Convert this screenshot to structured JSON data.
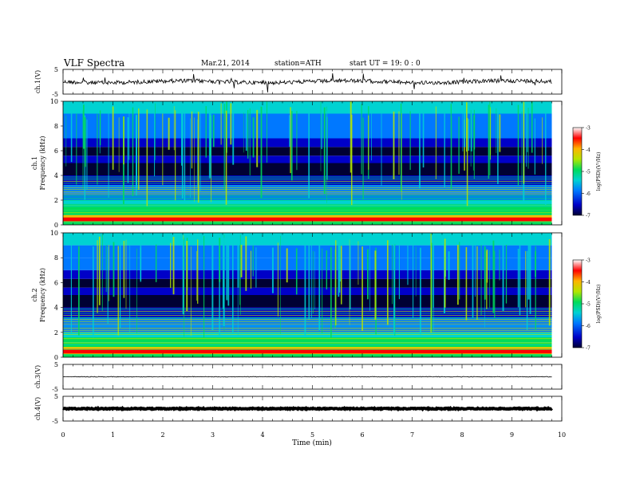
{
  "header": {
    "title": "VLF  Spectra",
    "date": "Mar.21, 2014",
    "station": "station=ATH",
    "start": "start  UT =   19: 0  : 0"
  },
  "colors": {
    "background": "#ffffff",
    "axis": "#000000",
    "trace": "#000000",
    "colormap": [
      "#000033",
      "#0000c8",
      "#0078ff",
      "#00d2d2",
      "#00dc5a",
      "#b4e600",
      "#ffb400",
      "#ff0000",
      "#ffffff"
    ]
  },
  "chart_data": [
    {
      "type": "line",
      "id": "ch1-waveform",
      "ylabel": "ch.1(V)",
      "ylim": [
        -5,
        5
      ],
      "yticks": [
        "5",
        "-5"
      ],
      "xlim": [
        0,
        10
      ],
      "baseline": 0,
      "description_values": {
        "mean_level_V": 0.0
      }
    },
    {
      "type": "heatmap",
      "id": "ch1-spectrogram",
      "ylabel": "ch.1\nFrequency  (kHz)",
      "ylabel_lines": [
        "ch.1",
        "Frequency  (kHz)"
      ],
      "ylim": [
        0,
        10
      ],
      "yticks": [
        "0",
        "2",
        "4",
        "6",
        "8",
        "10"
      ],
      "xlim": [
        0,
        9.8
      ],
      "colorbar": {
        "label": "log(PSD)(V²/Hz)",
        "range": [
          -7,
          -3
        ],
        "ticks": [
          "-3",
          "-4",
          "-5",
          "-6",
          "-7"
        ]
      }
    },
    {
      "type": "heatmap",
      "id": "ch2-spectrogram",
      "ylabel": "ch.2\nFrequency  (kHz)",
      "ylabel_lines": [
        "ch.2",
        "Frequency  (kHz)"
      ],
      "ylim": [
        0,
        10
      ],
      "yticks": [
        "0",
        "2",
        "4",
        "6",
        "8",
        "10"
      ],
      "xlim": [
        0,
        9.8
      ],
      "colorbar": {
        "label": "log(PSD)(V²/Hz)",
        "range": [
          -7,
          -3
        ],
        "ticks": [
          "-3",
          "-4",
          "-5",
          "-6",
          "-7"
        ]
      }
    },
    {
      "type": "line",
      "id": "ch3-waveform",
      "ylabel": "ch.3(V)",
      "ylim": [
        -5,
        5
      ],
      "yticks": [
        "5",
        "-5"
      ],
      "xlim": [
        0,
        10
      ],
      "baseline": 0
    },
    {
      "type": "line",
      "id": "ch4-waveform",
      "ylabel": "ch.4(V)",
      "ylim": [
        -5,
        5
      ],
      "yticks": [
        "5",
        "-5"
      ],
      "xlim": [
        0,
        10
      ],
      "baseline": 0
    }
  ],
  "xaxis": {
    "label": "Time  (min)",
    "range": [
      0,
      10
    ],
    "ticks": [
      "0",
      "1",
      "2",
      "3",
      "4",
      "5",
      "6",
      "7",
      "8",
      "9",
      "10"
    ]
  }
}
